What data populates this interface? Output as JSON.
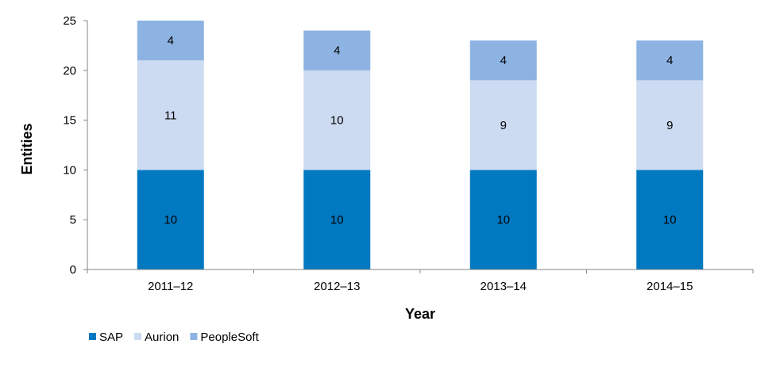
{
  "chart_data": {
    "type": "bar",
    "stacked": true,
    "categories": [
      "2011–12",
      "2012–13",
      "2013–14",
      "2014–15"
    ],
    "series": [
      {
        "name": "SAP",
        "values": [
          10,
          10,
          10,
          10
        ],
        "color": "#0079C1"
      },
      {
        "name": "Aurion",
        "values": [
          11,
          10,
          9,
          9
        ],
        "color": "#CCDBF1"
      },
      {
        "name": "PeopleSoft",
        "values": [
          4,
          4,
          4,
          4
        ],
        "color": "#8DB3E2"
      }
    ],
    "xlabel": "Year",
    "ylabel": "Entities",
    "ylim": [
      0,
      25
    ],
    "yticks": [
      "0",
      "5",
      "10",
      "15",
      "20",
      "25"
    ],
    "grid": false,
    "legend_position": "bottom-left",
    "data_labels": true
  }
}
